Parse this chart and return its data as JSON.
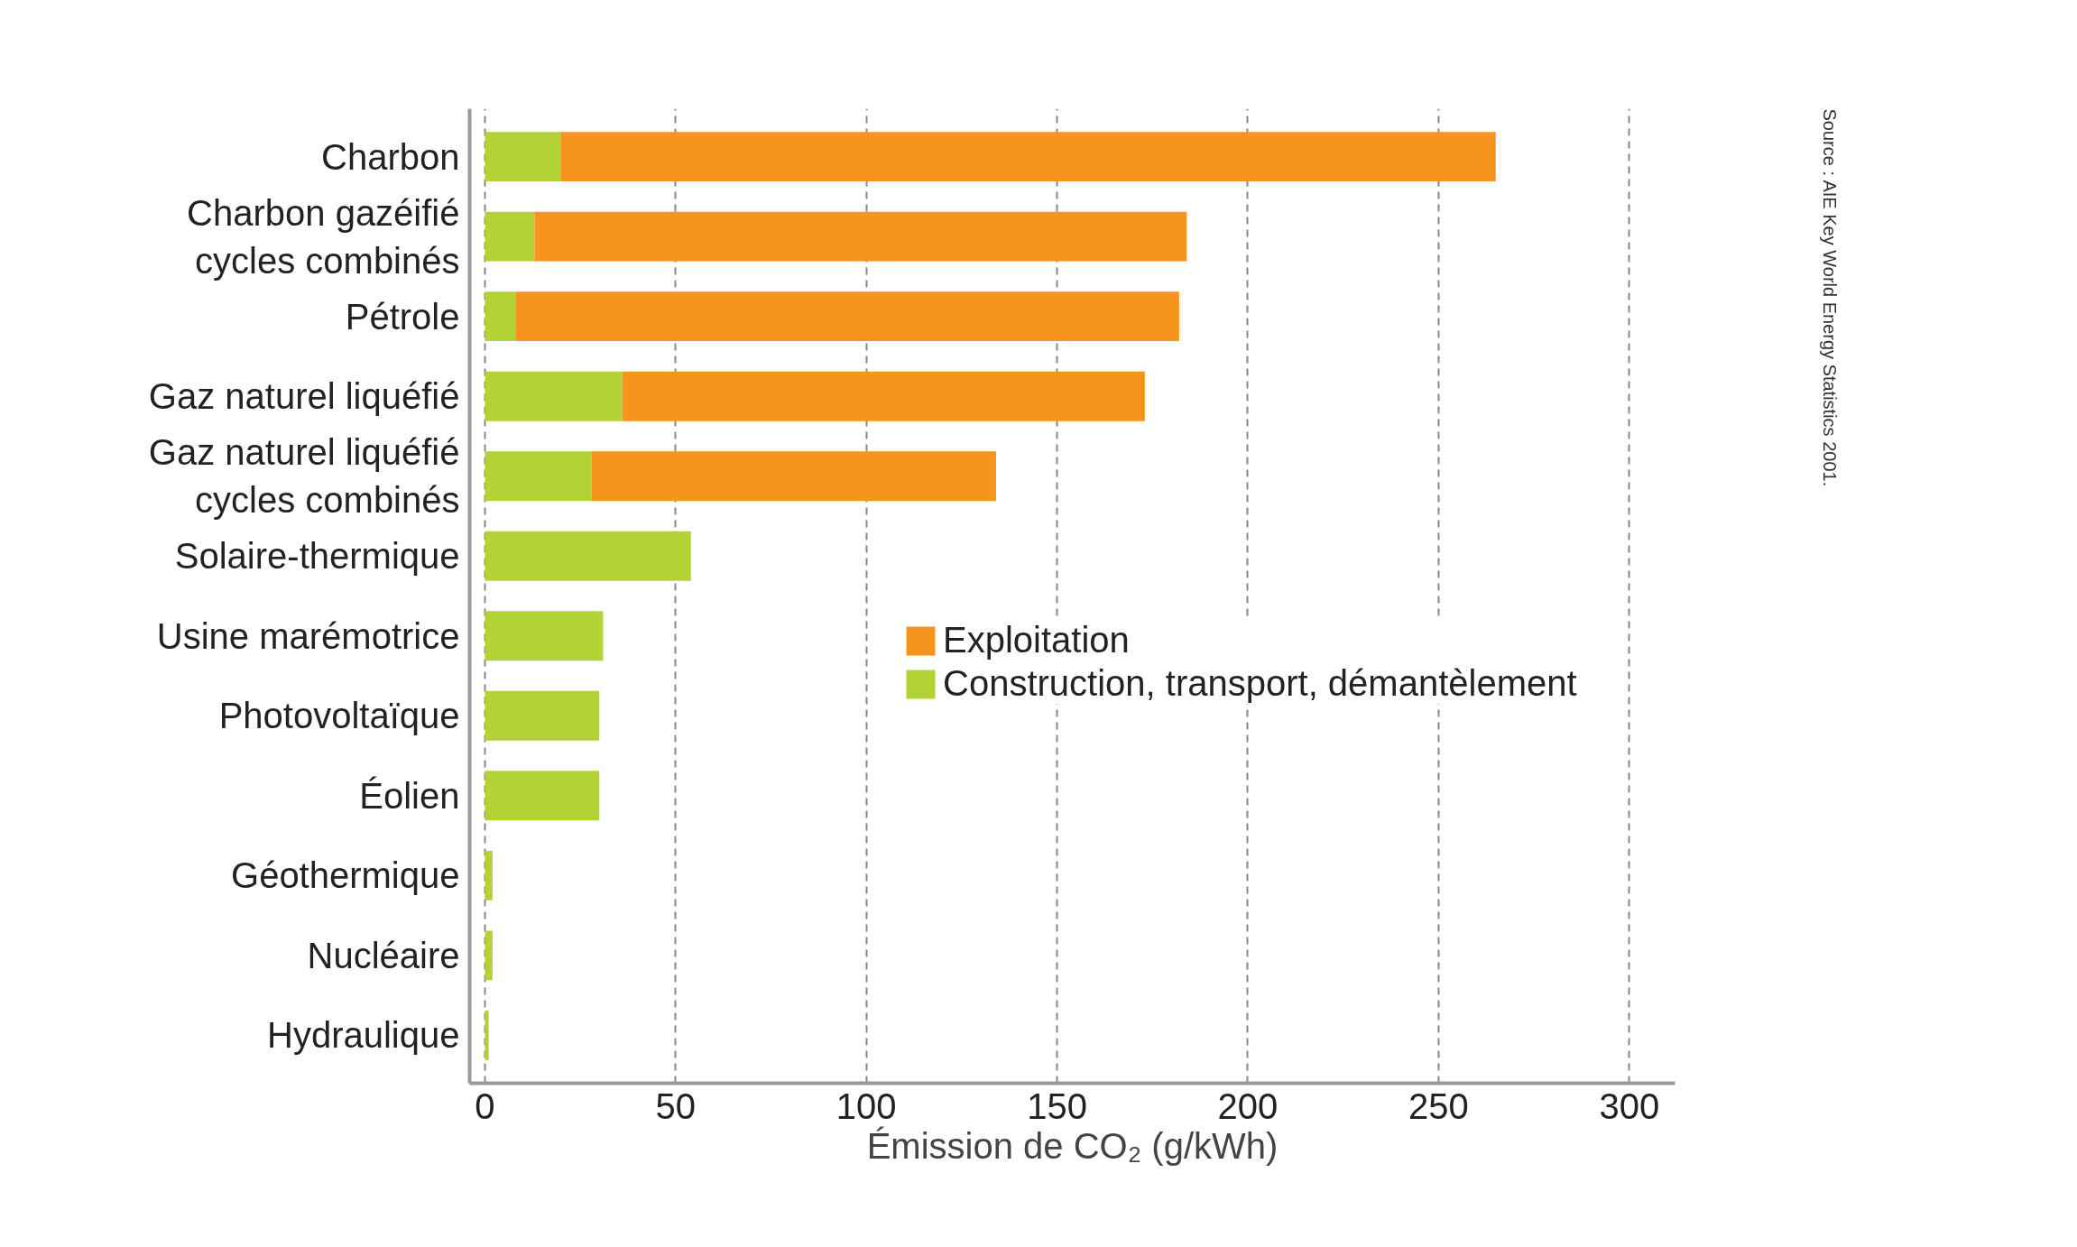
{
  "chart_data": {
    "type": "bar",
    "orientation": "horizontal",
    "stacked": true,
    "categories": [
      "Charbon",
      "Charbon gazéifié cycles combinés",
      "Pétrole",
      "Gaz naturel liquéfié",
      "Gaz naturel liquéfié cycles combinés",
      "Solaire-thermique",
      "Usine marémotrice",
      "Photovoltaïque",
      "Éolien",
      "Géothermique",
      "Nucléaire",
      "Hydraulique"
    ],
    "series": [
      {
        "name": "Construction, transport, démantèlement",
        "color": "#b2d235",
        "values": [
          20,
          13,
          8,
          36,
          28,
          54,
          31,
          30,
          30,
          2,
          2,
          1
        ]
      },
      {
        "name": "Exploitation",
        "color": "#f7941d",
        "values": [
          245,
          171,
          174,
          137,
          106,
          null,
          null,
          null,
          null,
          null,
          null,
          null
        ]
      }
    ],
    "xlim": [
      -4,
      312
    ],
    "xticks": [
      0,
      50,
      100,
      150,
      200,
      250,
      300
    ],
    "grid": "x",
    "legend": "right",
    "xlabel": "Émission de CO₂ (g/kWh)",
    "annotations": [
      "Source : AIE Key World Energy Statistics 2001."
    ]
  }
}
